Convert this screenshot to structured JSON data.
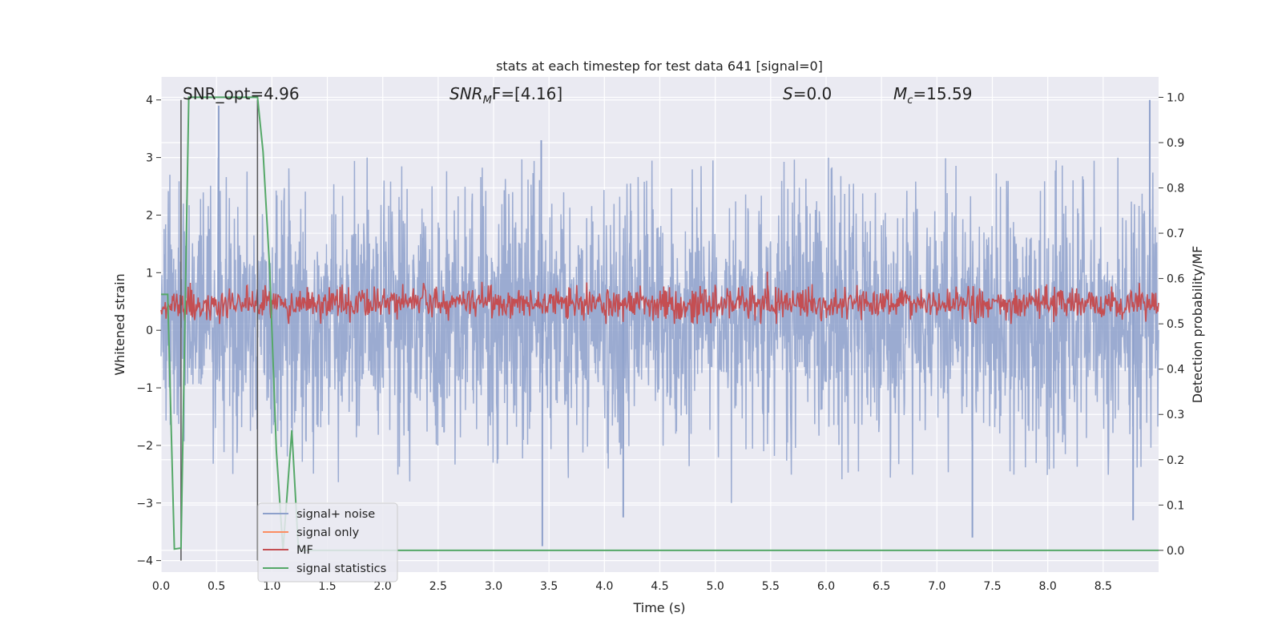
{
  "chart_data": {
    "type": "line",
    "title": "stats at each timestep for test data 641 [signal=0]",
    "xlabel": "Time (s)",
    "ylabel_left": "Whitened strain",
    "ylabel_right": "Detection probability/MF",
    "xlim": [
      0.0,
      9.0
    ],
    "ylim_left": [
      -4.2,
      4.4
    ],
    "ylim_right": [
      -0.048,
      1.045
    ],
    "x_ticks": [
      0.0,
      0.5,
      1.0,
      1.5,
      2.0,
      2.5,
      3.0,
      3.5,
      4.0,
      4.5,
      5.0,
      5.5,
      6.0,
      6.5,
      7.0,
      7.5,
      8.0,
      8.5
    ],
    "x_tick_labels": [
      "0.0",
      "0.5",
      "1.0",
      "1.5",
      "2.0",
      "2.5",
      "3.0",
      "3.5",
      "4.0",
      "4.5",
      "5.0",
      "5.5",
      "6.0",
      "6.5",
      "7.0",
      "7.5",
      "8.0",
      "8.5"
    ],
    "y_left_ticks": [
      4,
      3,
      2,
      1,
      0,
      -1,
      -2,
      -3,
      -4
    ],
    "y_left_tick_labels": [
      "4",
      "3",
      "2",
      "1",
      "0",
      "−1",
      "−2",
      "−3",
      "−4"
    ],
    "y_right_ticks": [
      1.0,
      0.9,
      0.8,
      0.7,
      0.6,
      0.5,
      0.4,
      0.3,
      0.2,
      0.1,
      0.0
    ],
    "y_right_tick_labels": [
      "1.0",
      "0.9",
      "0.8",
      "0.7",
      "0.6",
      "0.5",
      "0.4",
      "0.3",
      "0.2",
      "0.1",
      "0.0"
    ],
    "grid": true,
    "legend_position": "lower-left",
    "annotations": {
      "snr_opt": "SNR_opt=4.96",
      "snr_mf_name": "SNR",
      "snr_mf_sub": "M",
      "snr_mf_rest": "F=[4.16]",
      "s_name": "S",
      "s_value": "=0.0",
      "mc_name": "M",
      "mc_sub": "c",
      "mc_value": "=15.59"
    },
    "series": [
      {
        "name": "signal+ noise",
        "axis": "left",
        "color": "#8da0cb",
        "description_range": [
          -3.8,
          4.0
        ],
        "envelope_top": [
          2.4,
          2.2,
          2.6,
          2.1,
          2.5,
          2.3,
          2.8,
          2.2,
          2.6,
          2.4,
          2.3,
          2.7,
          2.2,
          2.5,
          2.1,
          2.6,
          2.3,
          2.9,
          2.4,
          2.2,
          2.7,
          2.5,
          2.3,
          2.6,
          2.4,
          2.8,
          2.2,
          2.5,
          2.6,
          2.3,
          2.7,
          2.4,
          2.5,
          2.2,
          2.6,
          2.9,
          2.3,
          2.4,
          2.7,
          2.5,
          2.3,
          2.6,
          2.2,
          2.5,
          2.8,
          2.4,
          2.6,
          2.3,
          2.5,
          2.7
        ],
        "peaks": [
          [
            0.52,
            3.9
          ],
          [
            3.43,
            3.3
          ],
          [
            8.92,
            4.0
          ]
        ],
        "troughs": [
          [
            3.44,
            -3.75
          ],
          [
            4.17,
            -3.25
          ],
          [
            7.32,
            -3.6
          ],
          [
            8.77,
            -3.3
          ]
        ]
      },
      {
        "name": "signal only",
        "axis": "left",
        "color": "#fc8d62",
        "values": [
          0.0
        ]
      },
      {
        "name": "MF",
        "axis": "right",
        "color": "#c44e52",
        "band": [
          0.5,
          0.6
        ],
        "peak": [
          5.47,
          0.615
        ]
      },
      {
        "name": "signal statistics",
        "axis": "right",
        "color": "#55a868",
        "x": [
          0.0,
          0.06,
          0.12,
          0.18,
          0.25,
          0.5,
          0.87,
          0.92,
          0.98,
          1.04,
          1.1,
          1.18,
          1.24,
          1.3,
          1.5,
          9.0
        ],
        "y": [
          0.565,
          0.565,
          0.003,
          0.005,
          1.0,
          1.0,
          1.0,
          0.88,
          0.62,
          0.22,
          0.0,
          0.265,
          0.0,
          0.0,
          0.0,
          0.0
        ]
      }
    ],
    "vlines": [
      0.18,
      0.87
    ],
    "vline_color": "#555555"
  }
}
